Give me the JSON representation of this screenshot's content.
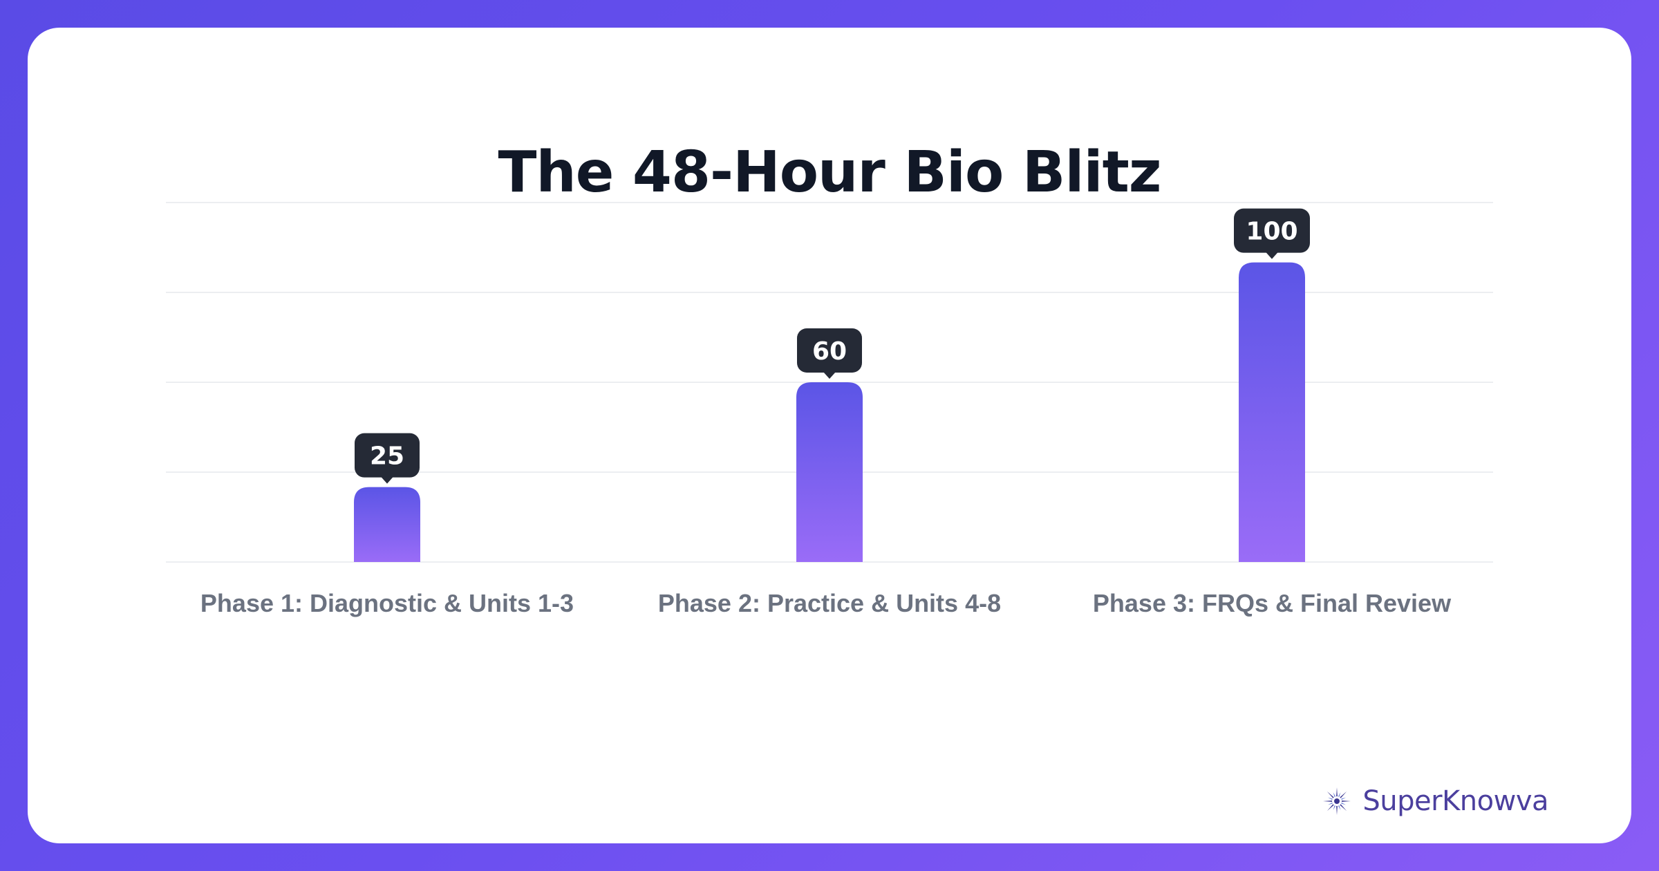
{
  "chart_data": {
    "type": "bar",
    "title": "The 48-Hour Bio Blitz",
    "categories": [
      "Phase 1: Diagnostic & Units 1-3",
      "Phase 2: Practice & Units 4-8",
      "Phase 3: FRQs & Final Review"
    ],
    "values": [
      25,
      60,
      100
    ],
    "ylim": [
      0,
      120
    ],
    "grid": true,
    "xlabel": "",
    "ylabel": ""
  },
  "colors": {
    "bar_top": "#5b55e6",
    "bar_bottom": "#9a6cf7",
    "label_bg": "#252a36",
    "title": "#111827",
    "axis_text": "#6b7280",
    "brand_text": "#4b3f9e",
    "grid": "#eceef1"
  },
  "brand": {
    "name": "SuperKnowva",
    "icon": "starburst-logo-icon"
  }
}
